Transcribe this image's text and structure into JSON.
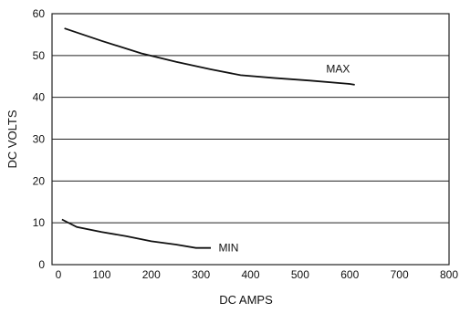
{
  "chart_data": {
    "type": "line",
    "xlabel": "DC AMPS",
    "ylabel": "DC VOLTS",
    "xlim": [
      0,
      800
    ],
    "ylim": [
      0,
      60
    ],
    "xticks": [
      0,
      100,
      200,
      300,
      400,
      500,
      600,
      700,
      800
    ],
    "yticks": [
      0,
      10,
      20,
      30,
      40,
      50,
      60
    ],
    "grid": "horizontal",
    "series": [
      {
        "name": "MAX",
        "x": [
          25,
          100,
          180,
          250,
          320,
          380,
          450,
          520,
          600,
          610
        ],
        "y": [
          56.5,
          53.5,
          50.5,
          48.5,
          46.7,
          45.3,
          44.6,
          44.0,
          43.2,
          43.0
        ]
      },
      {
        "name": "MIN",
        "x": [
          20,
          50,
          100,
          150,
          200,
          250,
          290,
          320
        ],
        "y": [
          10.8,
          9.0,
          7.8,
          6.8,
          5.6,
          4.8,
          4.0,
          4.0
        ]
      }
    ]
  }
}
